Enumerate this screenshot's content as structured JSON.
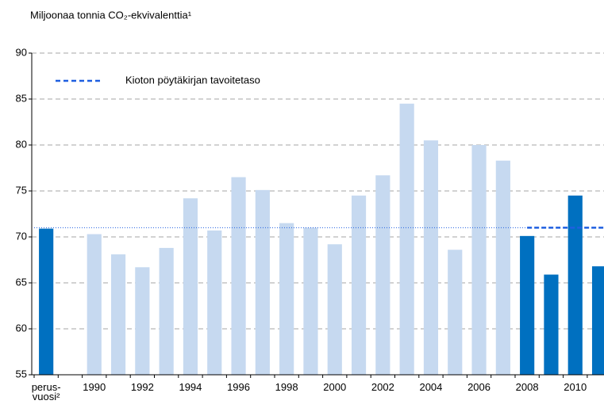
{
  "chart_data": {
    "type": "bar",
    "title": "Miljoonaa tonnia CO₂-ekvivalenttia¹",
    "categories": [
      "perus-vuosi²",
      null,
      "1990",
      null,
      "1992",
      null,
      "1994",
      null,
      "1996",
      null,
      "1998",
      null,
      "2000",
      null,
      "2002",
      null,
      "2004",
      null,
      "2006",
      null,
      "2008",
      null,
      "2010",
      null
    ],
    "values": [
      70.9,
      null,
      70.3,
      68.1,
      66.7,
      68.8,
      74.2,
      70.7,
      76.5,
      75.1,
      71.5,
      71.0,
      69.2,
      74.5,
      76.7,
      84.5,
      80.5,
      68.6,
      80.0,
      78.3,
      70.1,
      65.9,
      74.5,
      66.8
    ],
    "colors": [
      "#0070c0",
      null,
      "#c6d9f0",
      "#c6d9f0",
      "#c6d9f0",
      "#c6d9f0",
      "#c6d9f0",
      "#c6d9f0",
      "#c6d9f0",
      "#c6d9f0",
      "#c6d9f0",
      "#c6d9f0",
      "#c6d9f0",
      "#c6d9f0",
      "#c6d9f0",
      "#c6d9f0",
      "#c6d9f0",
      "#c6d9f0",
      "#c6d9f0",
      "#c6d9f0",
      "#0070c0",
      "#0070c0",
      "#0070c0",
      "#0070c0"
    ],
    "target": {
      "name": "Kioton pöytäkirjan tavoitetaso",
      "value": 71.0,
      "color": "#1f5fe0"
    },
    "ylim": [
      55,
      90
    ],
    "yticks": [
      55,
      60,
      65,
      70,
      75,
      80,
      85,
      90
    ],
    "grid": true
  }
}
